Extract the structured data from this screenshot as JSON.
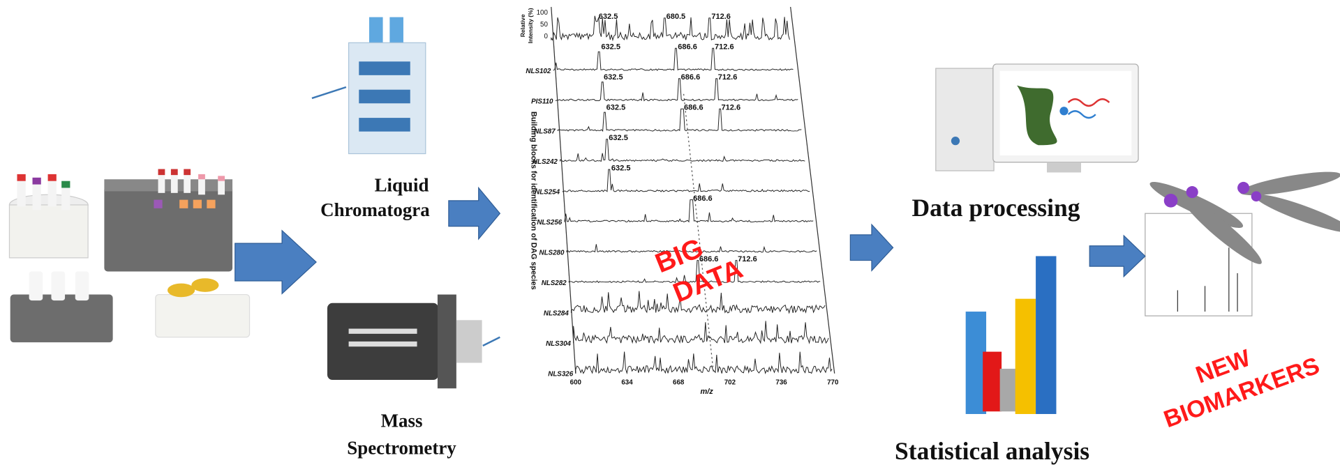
{
  "liquid_chromatography": {
    "lines": [
      "Liquid",
      "Chromatogra"
    ]
  },
  "mass_spectrometry": {
    "lines": [
      "Mass",
      "Spectrometry"
    ]
  },
  "data_processing": {
    "label": "Data processing"
  },
  "statistical_analysis": {
    "label": "Statistical analysis"
  },
  "big_data": {
    "lines": [
      "BIG",
      "DATA"
    ]
  },
  "new_biomarkers": {
    "lines": [
      "NEW",
      "BIOMARKERS"
    ]
  },
  "spectra": {
    "y_axis_label": [
      "Relative",
      "Intensity (%)"
    ],
    "y_ticks": [
      "100",
      "50",
      "0"
    ],
    "side_label": "Building blocks for identification of DAG species",
    "x_axis_label": "m/z",
    "x_ticks": [
      "600",
      "634",
      "668",
      "702",
      "736",
      "770"
    ],
    "rows": [
      {
        "peaks": [
          "632.5",
          "680.5",
          "712.6"
        ]
      },
      {
        "name": "NLS102",
        "peaks": [
          "632.5",
          "686.6",
          "712.6"
        ]
      },
      {
        "name": "PIS110",
        "peaks": [
          "632.5",
          "686.6",
          "712.6"
        ]
      },
      {
        "name": "NLS87",
        "peaks": [
          "632.5",
          "686.6",
          "712.6"
        ]
      },
      {
        "name": "NLS242",
        "peaks": [
          "632.5"
        ]
      },
      {
        "name": "NLS254",
        "peaks": [
          "632.5"
        ]
      },
      {
        "name": "NLS256",
        "peaks": [
          "686.6"
        ]
      },
      {
        "name": "NLS280"
      },
      {
        "name": "NLS282",
        "peaks": [
          "686.6",
          "712.6"
        ]
      },
      {
        "name": "NLS284"
      },
      {
        "name": "NLS304"
      },
      {
        "name": "NLS326"
      }
    ]
  }
}
